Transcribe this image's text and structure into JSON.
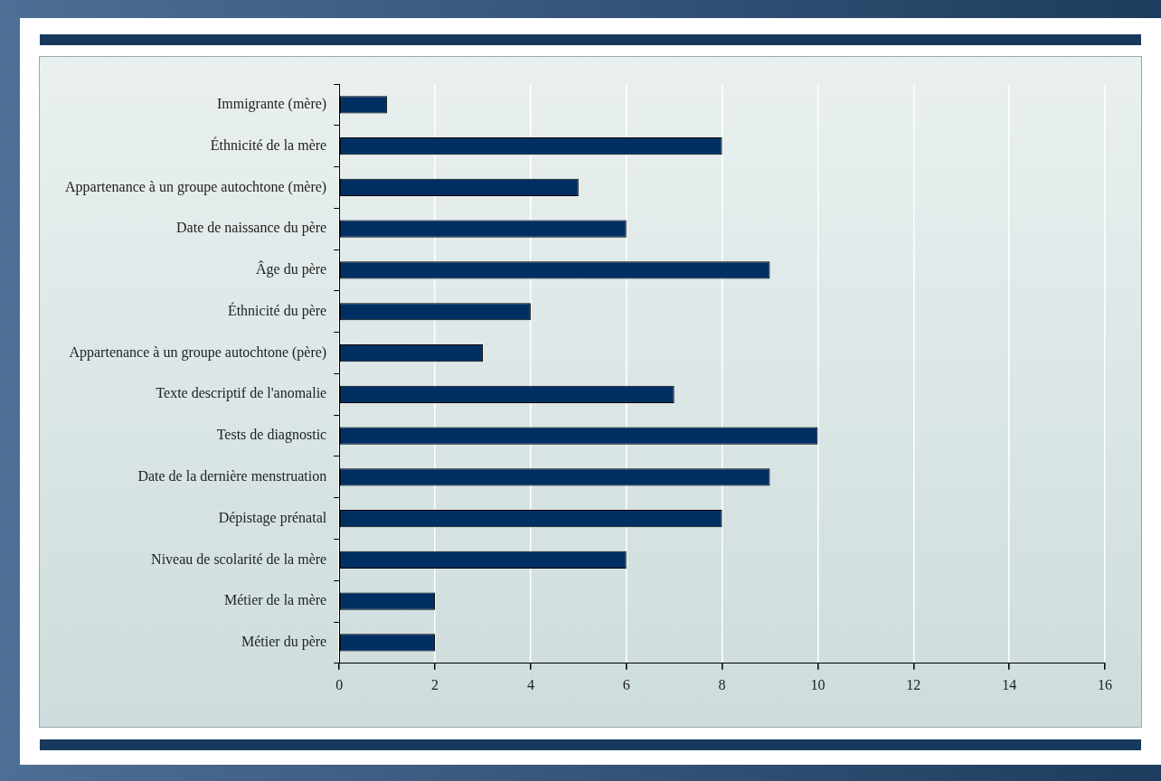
{
  "chart_data": {
    "type": "bar",
    "orientation": "horizontal",
    "categories": [
      "Immigrante (mère)",
      "Éthnicité de la mère",
      "Appartenance à un groupe autochtone (mère)",
      "Date de naissance du père",
      "Âge du père",
      "Éthnicité du père",
      "Appartenance à un groupe autochtone (père)",
      "Texte descriptif de l'anomalie",
      "Tests de diagnostic",
      "Date de la dernière menstruation",
      "Dépistage prénatal",
      "Niveau de scolarité de la mère",
      "Métier de la mère",
      "Métier du père"
    ],
    "values": [
      1,
      8,
      5,
      6,
      9,
      4,
      3,
      7,
      10,
      9,
      8,
      6,
      2,
      2
    ],
    "color": "#003063",
    "xlim": [
      0,
      16
    ],
    "xticks": [
      0,
      2,
      4,
      6,
      8,
      10,
      12,
      14,
      16
    ],
    "grid": "x",
    "legend": false
  }
}
